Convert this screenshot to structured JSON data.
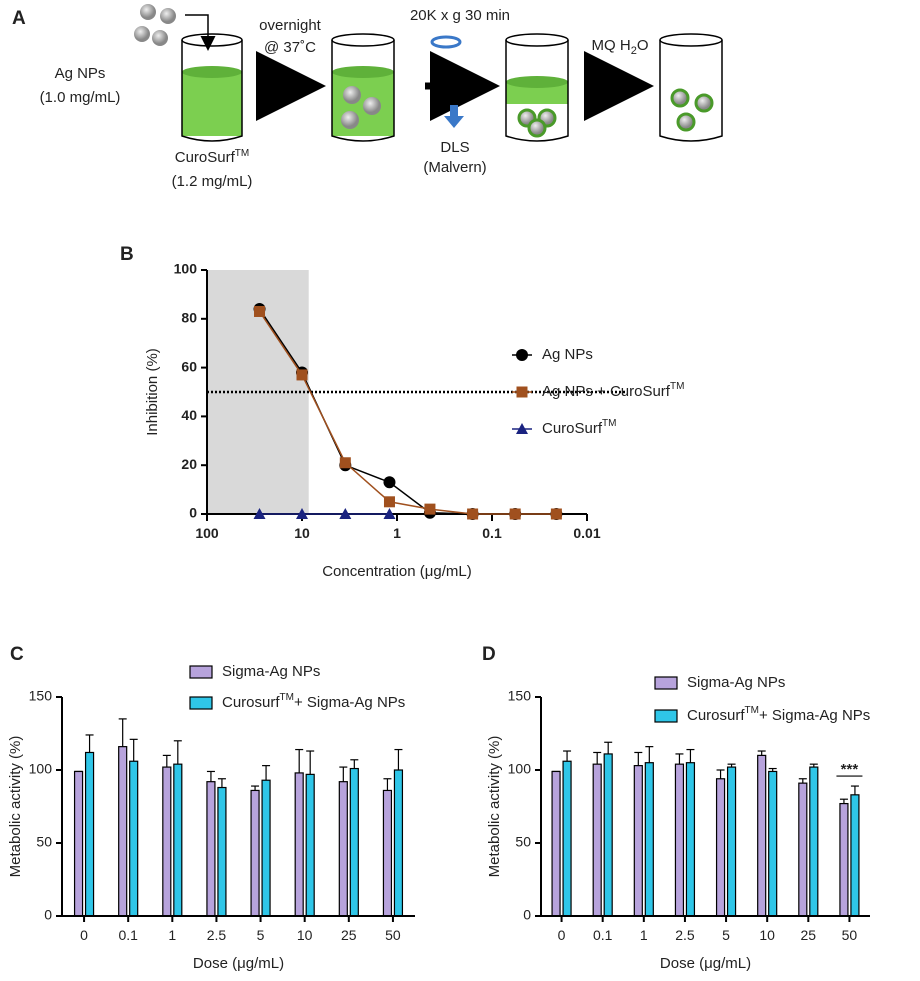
{
  "diagram": {
    "label": "A",
    "ag_nps": "Ag NPs",
    "ag_conc": "(1.0 mg/mL)",
    "curosurf": "CuroSurf",
    "curosurf_sup": "TM",
    "curosurf_conc": "(1.2 mg/mL)",
    "step1_a": "overnight",
    "step1_b": "@ 37˚C",
    "step2": "20K x g 30 min",
    "dls": "DLS",
    "malvern": "(Malvern)",
    "mq": "MQ  H",
    "mq_sub": "2",
    "mq_after": "O"
  },
  "chart_data": [
    {
      "type": "line",
      "panel_label": "B",
      "xlabel": "Concentration (μg/mL)",
      "ylabel": "Inhibition (%)",
      "xscale": "log",
      "xlim": [
        100,
        0.01
      ],
      "xticks": [
        100,
        10,
        1,
        0.1,
        0.01
      ],
      "ylim": [
        0,
        100
      ],
      "yticks": [
        0,
        20,
        40,
        60,
        80,
        100
      ],
      "shaded_xrange": [
        100,
        8.5
      ],
      "hline": 50,
      "series": [
        {
          "name": "Ag NPs",
          "color": "#000000",
          "marker": "circle",
          "x": [
            28,
            10,
            3.5,
            1.2,
            0.45,
            0.16,
            0.057,
            0.021
          ],
          "values": [
            84,
            58,
            20,
            13,
            0.5,
            0,
            0,
            0
          ]
        },
        {
          "name": "Ag NPs + CuroSurf",
          "name_sup": "TM",
          "color": "#a0501e",
          "marker": "square",
          "x": [
            28,
            10,
            3.5,
            1.2,
            0.45,
            0.16,
            0.057,
            0.021
          ],
          "values": [
            83,
            57,
            21,
            5,
            2,
            0,
            0,
            0
          ]
        },
        {
          "name": "CuroSurf",
          "name_sup": "TM",
          "color": "#1a2380",
          "marker": "triangle",
          "x": [
            28,
            10,
            3.5,
            1.2
          ],
          "values": [
            0,
            0,
            0,
            0
          ]
        }
      ]
    },
    {
      "type": "bar",
      "panel_label": "C",
      "xlabel": "Dose (μg/mL)",
      "ylabel": "Metabolic activity (%)",
      "categories": [
        "0",
        "0.1",
        "1",
        "2.5",
        "5",
        "10",
        "25",
        "50"
      ],
      "ylim": [
        0,
        150
      ],
      "yticks": [
        0,
        50,
        100,
        150
      ],
      "series": [
        {
          "name": "Sigma-Ag NPs",
          "color": "#b7a3dc",
          "values": [
            99,
            116,
            102,
            92,
            86,
            98,
            92,
            86
          ],
          "errors": [
            0,
            19,
            8,
            7,
            3,
            16,
            10,
            8
          ]
        },
        {
          "name": "Curosurf",
          "name_sup": "TM",
          "name_after": "+ Sigma-Ag NPs",
          "color": "#2fc6e8",
          "values": [
            112,
            106,
            104,
            88,
            93,
            97,
            101,
            100
          ],
          "errors": [
            12,
            15,
            16,
            6,
            10,
            16,
            6,
            14
          ]
        }
      ]
    },
    {
      "type": "bar",
      "panel_label": "D",
      "xlabel": "Dose (μg/mL)",
      "ylabel": "Metabolic activity (%)",
      "categories": [
        "0",
        "0.1",
        "1",
        "2.5",
        "5",
        "10",
        "25",
        "50"
      ],
      "ylim": [
        0,
        150
      ],
      "yticks": [
        0,
        50,
        100,
        150
      ],
      "annotation": "***",
      "series": [
        {
          "name": "Sigma-Ag NPs",
          "color": "#b7a3dc",
          "values": [
            99,
            104,
            103,
            104,
            94,
            110,
            91,
            77
          ],
          "errors": [
            0,
            8,
            9,
            7,
            6,
            3,
            3,
            3
          ]
        },
        {
          "name": "Curosurf",
          "name_sup": "TM",
          "name_after": "+ Sigma-Ag NPs",
          "color": "#2fc6e8",
          "values": [
            106,
            111,
            105,
            105,
            102,
            99,
            102,
            83
          ],
          "errors": [
            7,
            8,
            11,
            9,
            2,
            2,
            2,
            6
          ]
        }
      ]
    }
  ]
}
